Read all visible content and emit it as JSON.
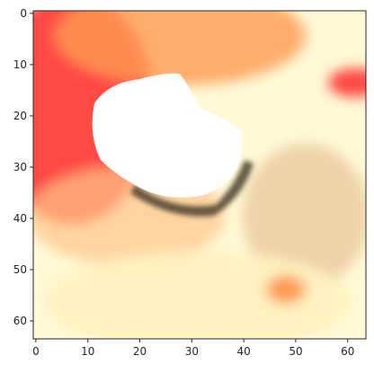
{
  "image_plot": {
    "grid_size": [
      64,
      64
    ],
    "x_ticks": [
      "0",
      "10",
      "20",
      "30",
      "40",
      "50",
      "60"
    ],
    "y_ticks": [
      "0",
      "10",
      "20",
      "30",
      "40",
      "50",
      "60"
    ],
    "x_tick_values": [
      0,
      10,
      20,
      30,
      40,
      50,
      60
    ],
    "y_tick_values": [
      0,
      10,
      20,
      30,
      40,
      50,
      60
    ],
    "palette": {
      "background": "#fff9d6",
      "warm_red": "#ff4a44",
      "orange": "#ff9a52",
      "peach": "#ffc48a",
      "cream": "#fff2c0",
      "white": "#ffffff",
      "tan": "#e8c49a",
      "dark_edge": "#4b3f2e"
    }
  }
}
